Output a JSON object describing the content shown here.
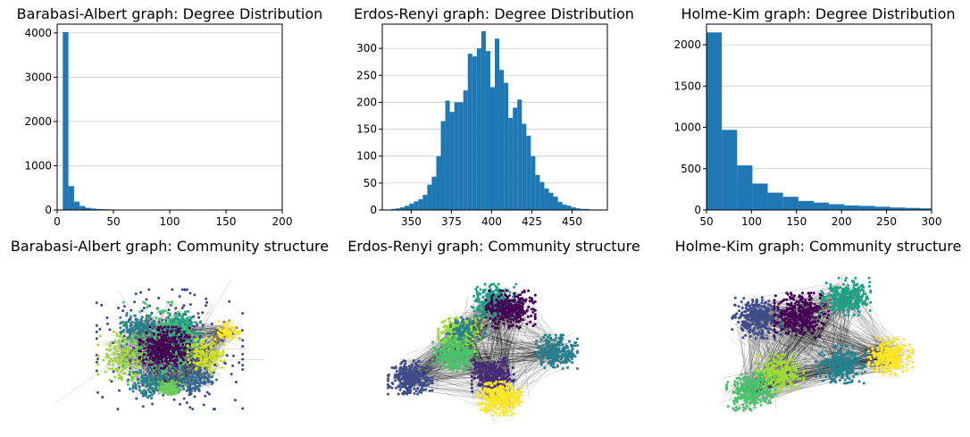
{
  "chart_data": [
    {
      "type": "bar",
      "title": "Barabasi-Albert graph: Degree Distribution",
      "xlim": [
        0,
        200
      ],
      "ylim": [
        0,
        4200
      ],
      "xticks": [
        0,
        50,
        100,
        150,
        200
      ],
      "yticks": [
        0,
        1000,
        2000,
        3000,
        4000
      ],
      "grid": "y",
      "bin_edges": [
        5,
        10,
        15,
        20,
        25,
        30,
        35,
        40,
        45,
        50,
        55,
        60,
        65,
        70,
        75,
        80,
        85,
        90,
        95,
        100,
        105,
        110,
        115,
        120,
        125,
        130,
        135,
        140,
        145,
        150,
        155,
        160,
        165,
        170,
        175,
        180,
        185,
        190,
        195,
        200
      ],
      "values": [
        4020,
        540,
        190,
        90,
        50,
        32,
        22,
        16,
        12,
        9,
        7,
        6,
        5,
        4,
        3,
        3,
        2,
        2,
        2,
        1,
        1,
        1,
        1,
        1,
        1,
        1,
        0,
        1,
        0,
        0,
        0,
        0,
        0,
        0,
        0,
        0,
        0,
        0,
        1
      ],
      "color": "#1f77b4"
    },
    {
      "type": "bar",
      "title": "Erdos-Renyi graph: Degree Distribution",
      "xlim": [
        332,
        472
      ],
      "ylim": [
        0,
        345
      ],
      "xticks": [
        350,
        375,
        400,
        425,
        450
      ],
      "yticks": [
        0,
        50,
        100,
        150,
        200,
        250,
        300
      ],
      "grid": "y",
      "bin_edges": [
        332.0,
        334.8,
        337.6,
        340.4,
        343.2,
        346.0,
        348.8,
        351.6,
        354.4,
        357.2,
        360.0,
        362.8,
        365.6,
        368.4,
        371.2,
        374.0,
        376.8,
        379.6,
        382.4,
        385.2,
        388.0,
        390.8,
        393.6,
        396.4,
        399.2,
        402.0,
        404.8,
        407.6,
        410.4,
        413.2,
        416.0,
        418.8,
        421.6,
        424.4,
        427.2,
        430.0,
        432.8,
        435.6,
        438.4,
        441.2,
        444.0,
        446.8,
        449.6,
        452.4,
        455.2,
        458.0,
        460.8,
        463.6,
        466.4,
        469.2,
        472.0
      ],
      "values": [
        1,
        1,
        2,
        3,
        5,
        8,
        12,
        16,
        20,
        28,
        47,
        62,
        100,
        165,
        203,
        182,
        200,
        200,
        222,
        290,
        285,
        300,
        332,
        295,
        228,
        318,
        260,
        236,
        171,
        190,
        205,
        160,
        138,
        100,
        65,
        52,
        40,
        32,
        25,
        15,
        10,
        8,
        5,
        3,
        2,
        2,
        1,
        1,
        1,
        0
      ],
      "color": "#1f77b4"
    },
    {
      "type": "bar",
      "title": "Holme-Kim graph: Degree Distribution",
      "xlim": [
        50,
        300
      ],
      "ylim": [
        0,
        2250
      ],
      "xticks": [
        50,
        100,
        150,
        200,
        250,
        300
      ],
      "yticks": [
        0,
        500,
        1000,
        1500,
        2000
      ],
      "grid": "y",
      "bin_edges": [
        50,
        67,
        84,
        101,
        118,
        135,
        152,
        169,
        186,
        203,
        220,
        237,
        254,
        271,
        288,
        305
      ],
      "values": [
        2150,
        970,
        540,
        320,
        210,
        160,
        110,
        90,
        70,
        55,
        50,
        40,
        30,
        25,
        20
      ],
      "color": "#1f77b4"
    },
    {
      "type": "scatter",
      "title": "Barabasi-Albert graph: Community structure",
      "axes": "off",
      "communities": [
        {
          "color": "#3e4c8a",
          "cx": 0.0,
          "cy": 0.02,
          "rx": 0.38,
          "ry": 0.42,
          "n": 700,
          "sx": 0.32,
          "sy": 0.32
        },
        {
          "color": "#1fa187",
          "cx": 0.1,
          "cy": -0.25,
          "rx": 0.15,
          "ry": 0.14,
          "n": 300,
          "sx": 0.09,
          "sy": 0.08
        },
        {
          "color": "#a0da39",
          "cx": -0.45,
          "cy": 0.1,
          "rx": 0.18,
          "ry": 0.22,
          "n": 300,
          "sx": 0.11,
          "sy": 0.13
        },
        {
          "color": "#4ac16d",
          "cx": -0.05,
          "cy": -0.05,
          "rx": 0.24,
          "ry": 0.28,
          "n": 500,
          "sx": 0.18,
          "sy": 0.22
        },
        {
          "color": "#440154",
          "cx": -0.05,
          "cy": 0.0,
          "rx": 0.18,
          "ry": 0.18,
          "n": 600,
          "sx": 0.11,
          "sy": 0.11
        },
        {
          "color": "#277f8e",
          "cx": -0.3,
          "cy": -0.25,
          "rx": 0.12,
          "ry": 0.1,
          "n": 200,
          "sx": 0.08,
          "sy": 0.07
        },
        {
          "color": "#26828e",
          "cx": -0.18,
          "cy": 0.42,
          "rx": 0.16,
          "ry": 0.12,
          "n": 200,
          "sx": 0.1,
          "sy": 0.08
        },
        {
          "color": "#cde11d",
          "cx": 0.35,
          "cy": 0.1,
          "rx": 0.14,
          "ry": 0.15,
          "n": 250,
          "sx": 0.08,
          "sy": 0.1
        },
        {
          "color": "#fde725",
          "cx": 0.55,
          "cy": -0.2,
          "rx": 0.1,
          "ry": 0.08,
          "n": 120,
          "sx": 0.06,
          "sy": 0.05
        },
        {
          "color": "#31688e",
          "cx": 0.25,
          "cy": 0.38,
          "rx": 0.16,
          "ry": 0.1,
          "n": 200,
          "sx": 0.1,
          "sy": 0.07
        },
        {
          "color": "#6ccd5a",
          "cx": 0.0,
          "cy": 0.48,
          "rx": 0.1,
          "ry": 0.08,
          "n": 220,
          "sx": 0.05,
          "sy": 0.04
        }
      ]
    },
    {
      "type": "scatter",
      "title": "Erdos-Renyi graph: Community structure",
      "axes": "off",
      "communities": [
        {
          "color": "#1fa187",
          "cx": 0.0,
          "cy": -0.55,
          "rx": 0.17,
          "ry": 0.17,
          "n": 500,
          "sx": 0.09,
          "sy": 0.09
        },
        {
          "color": "#440154",
          "cx": 0.15,
          "cy": -0.45,
          "rx": 0.19,
          "ry": 0.19,
          "n": 550,
          "sx": 0.1,
          "sy": 0.1
        },
        {
          "color": "#a0da39",
          "cx": -0.3,
          "cy": -0.15,
          "rx": 0.18,
          "ry": 0.18,
          "n": 550,
          "sx": 0.09,
          "sy": 0.09
        },
        {
          "color": "#26828e",
          "cx": -0.25,
          "cy": -0.2,
          "rx": 0.16,
          "ry": 0.16,
          "n": 200,
          "sx": 0.08,
          "sy": 0.08
        },
        {
          "color": "#4ac16d",
          "cx": -0.35,
          "cy": 0.08,
          "rx": 0.18,
          "ry": 0.18,
          "n": 550,
          "sx": 0.09,
          "sy": 0.09
        },
        {
          "color": "#277f8e",
          "cx": 0.55,
          "cy": 0.05,
          "rx": 0.17,
          "ry": 0.17,
          "n": 500,
          "sx": 0.09,
          "sy": 0.09
        },
        {
          "color": "#3e4c8a",
          "cx": -0.75,
          "cy": 0.35,
          "rx": 0.18,
          "ry": 0.17,
          "n": 550,
          "sx": 0.09,
          "sy": 0.09
        },
        {
          "color": "#482878",
          "cx": 0.0,
          "cy": 0.32,
          "rx": 0.17,
          "ry": 0.17,
          "n": 500,
          "sx": 0.09,
          "sy": 0.09
        },
        {
          "color": "#fde725",
          "cx": 0.05,
          "cy": 0.6,
          "rx": 0.18,
          "ry": 0.17,
          "n": 600,
          "sx": 0.09,
          "sy": 0.09
        }
      ]
    },
    {
      "type": "scatter",
      "title": "Holme-Kim graph: Community structure",
      "axes": "off",
      "communities": [
        {
          "color": "#3e4c8a",
          "cx": -0.55,
          "cy": -0.35,
          "rx": 0.2,
          "ry": 0.22,
          "n": 550,
          "sx": 0.1,
          "sy": 0.11
        },
        {
          "color": "#440154",
          "cx": -0.15,
          "cy": -0.38,
          "rx": 0.22,
          "ry": 0.24,
          "n": 650,
          "sx": 0.11,
          "sy": 0.12
        },
        {
          "color": "#1fa187",
          "cx": 0.25,
          "cy": -0.6,
          "rx": 0.2,
          "ry": 0.2,
          "n": 550,
          "sx": 0.1,
          "sy": 0.1
        },
        {
          "color": "#26828e",
          "cx": 0.2,
          "cy": 0.2,
          "rx": 0.2,
          "ry": 0.21,
          "n": 550,
          "sx": 0.1,
          "sy": 0.1
        },
        {
          "color": "#fde725",
          "cx": 0.65,
          "cy": 0.1,
          "rx": 0.18,
          "ry": 0.2,
          "n": 500,
          "sx": 0.09,
          "sy": 0.1
        },
        {
          "color": "#a0da39",
          "cx": -0.35,
          "cy": 0.3,
          "rx": 0.2,
          "ry": 0.21,
          "n": 550,
          "sx": 0.1,
          "sy": 0.1
        },
        {
          "color": "#4ac16d",
          "cx": -0.6,
          "cy": 0.52,
          "rx": 0.2,
          "ry": 0.2,
          "n": 550,
          "sx": 0.1,
          "sy": 0.1
        }
      ]
    }
  ]
}
